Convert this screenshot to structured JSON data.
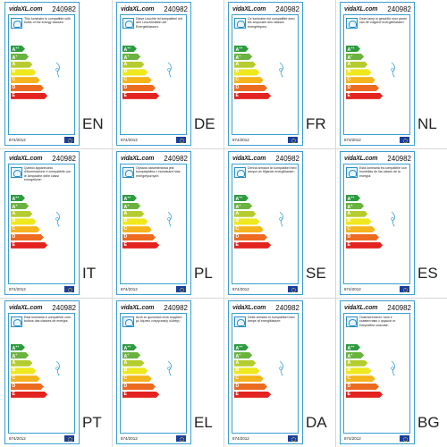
{
  "product_id": "240982",
  "brand": "vidaXL.com",
  "regulation": "874/2012",
  "classes": [
    {
      "letter": "A",
      "sup": "++",
      "color": "#2e9b3f"
    },
    {
      "letter": "A",
      "sup": "+",
      "color": "#6ab33f"
    },
    {
      "letter": "A",
      "sup": "",
      "color": "#b5cc2e"
    },
    {
      "letter": "B",
      "sup": "",
      "color": "#f0e81e"
    },
    {
      "letter": "C",
      "sup": "",
      "color": "#f6b41d"
    },
    {
      "letter": "D",
      "sup": "",
      "color": "#ed6b21"
    },
    {
      "letter": "E",
      "sup": "",
      "color": "#e3231f"
    }
  ],
  "labels": [
    {
      "lang": "EN",
      "text": "This luminaire is compatible with bulbs of the energy classes:"
    },
    {
      "lang": "DE",
      "text": "Diese Leuchte ist kompatibel mit den Leuchtmitteln der Energieklassen:"
    },
    {
      "lang": "FR",
      "text": "Ce luminaire est compatible avec les ampoules des classes énergétiques:"
    },
    {
      "lang": "NL",
      "text": "Deze lamp is geschikt voor peren van de volgend energieklassen:"
    },
    {
      "lang": "IT",
      "text": "Questo apparecchio d'illuminazione è compatibile con le lampadine delle classi energetiche:"
    },
    {
      "lang": "PL",
      "text": "Oprawa oświetleniowa jest kompatybilna z żarówkami klas energetycznych:"
    },
    {
      "lang": "SE",
      "text": "Denna armatur är kompatibel med lampor av följande energiklasser:"
    },
    {
      "lang": "ES",
      "text": "Esta luminaria es compatible con bombillas de las clases de la energía:"
    },
    {
      "lang": "PT",
      "text": "Esta luminária é compatível com bulbos das classes de energia:"
    },
    {
      "lang": "EL",
      "text": "Αυτό το φωτιστικό είναι συμβατό με λάμπες ενεργειακής κλάσης:"
    },
    {
      "lang": "DA",
      "text": "Dette armatur er kompatibel med lampe af energiklasser:"
    },
    {
      "lang": "BG",
      "text": "Осветителното тяло е съвместимо с крушки от енергийни класове:"
    }
  ]
}
